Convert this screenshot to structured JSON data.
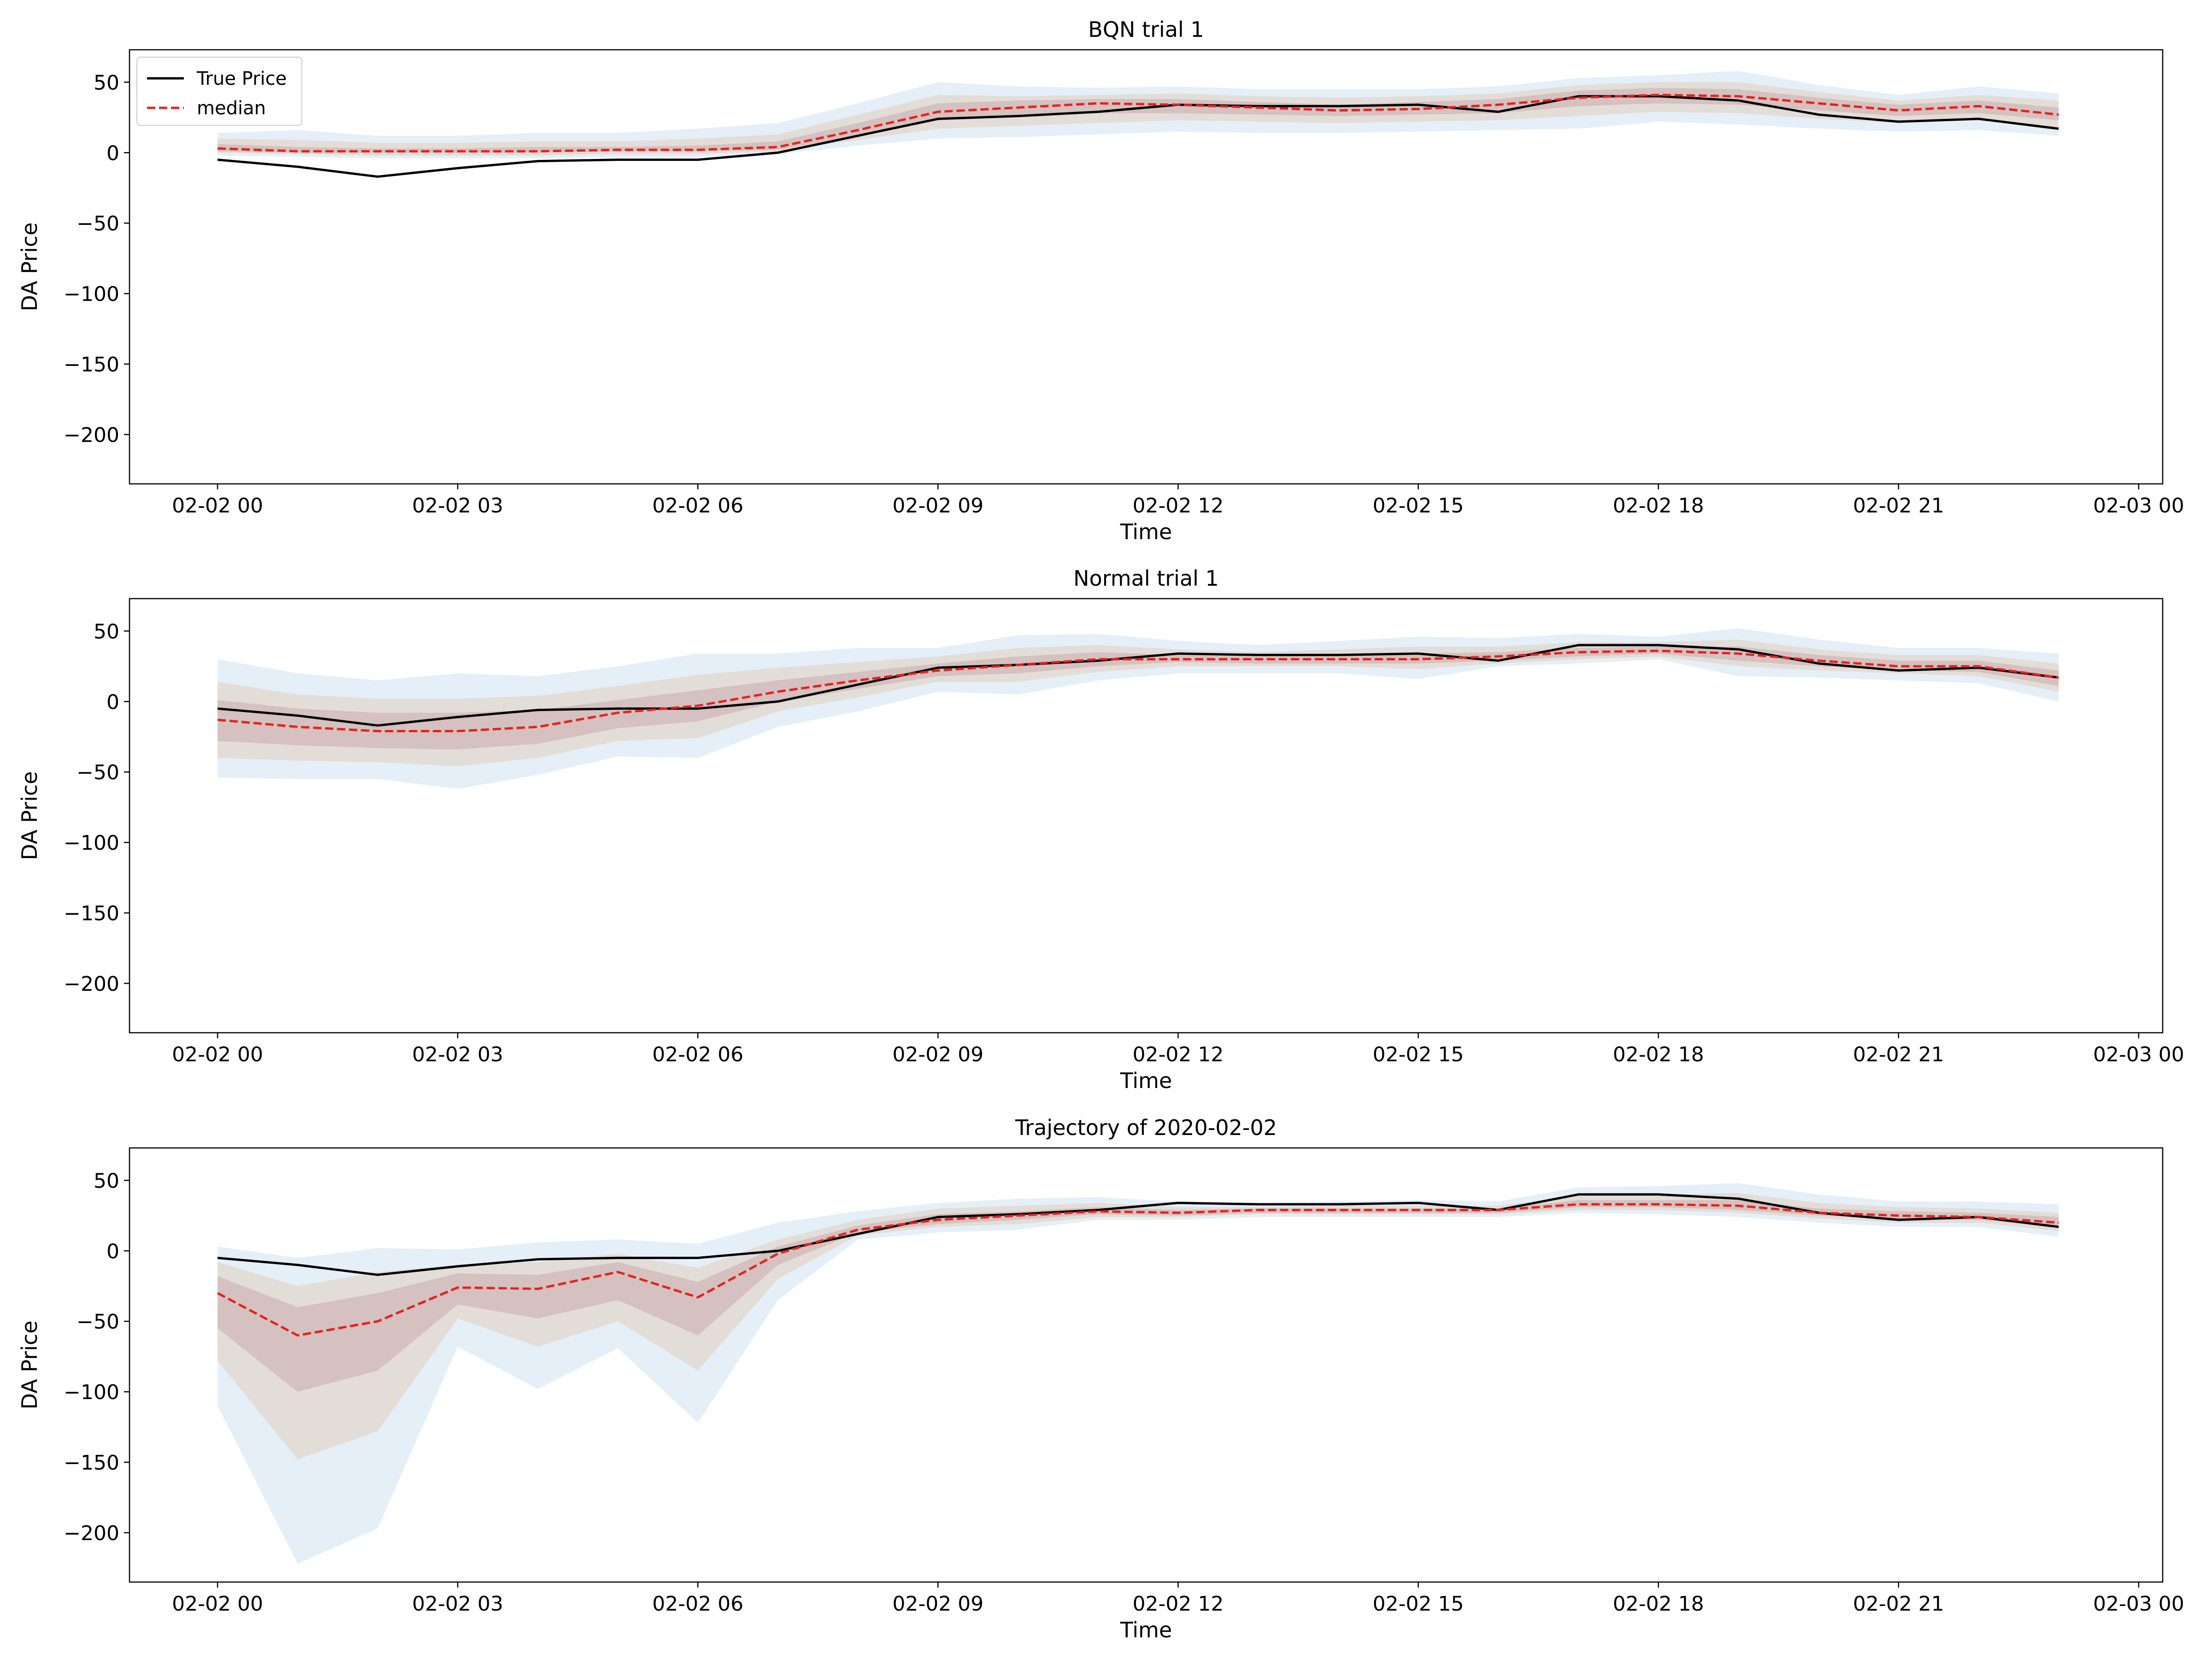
{
  "figure": {
    "legend": {
      "true_label": "True Price",
      "median_label": "median"
    }
  },
  "colors": {
    "true_price": "#000000",
    "median": "#e8201a",
    "band_outer": "#dce9f6",
    "band_mid": "#e2d7cc",
    "band_inner": "#c9a9ad"
  },
  "chart_data": [
    {
      "type": "line",
      "title": "BQN trial 1",
      "xlabel": "Time",
      "ylabel": "DA Price",
      "ylim": [
        -235,
        73
      ],
      "xlim_hours": [
        -1.1,
        24.3
      ],
      "x_ticks": [
        "02-02 00",
        "02-02 03",
        "02-02 06",
        "02-02 09",
        "02-02 12",
        "02-02 15",
        "02-02 18",
        "02-02 21",
        "02-03 00"
      ],
      "y_ticks": [
        50,
        0,
        -50,
        -100,
        -150,
        -200
      ],
      "x": [
        "02-02 00",
        "02-02 01",
        "02-02 02",
        "02-02 03",
        "02-02 04",
        "02-02 05",
        "02-02 06",
        "02-02 07",
        "02-02 08",
        "02-02 09",
        "02-02 10",
        "02-02 11",
        "02-02 12",
        "02-02 13",
        "02-02 14",
        "02-02 15",
        "02-02 16",
        "02-02 17",
        "02-02 18",
        "02-02 19",
        "02-02 20",
        "02-02 21",
        "02-02 22",
        "02-02 23"
      ],
      "legend_placement": "top-left",
      "series": [
        {
          "name": "True Price",
          "values": [
            -5,
            -10,
            -17,
            -11,
            -6,
            -5,
            -5,
            0,
            12,
            24,
            26,
            29,
            34,
            33,
            33,
            34,
            29,
            40,
            40,
            37,
            27,
            22,
            24,
            17
          ]
        },
        {
          "name": "median",
          "values": [
            3,
            1,
            1,
            1,
            1,
            2,
            2,
            4,
            16,
            29,
            32,
            35,
            34,
            32,
            30,
            31,
            34,
            39,
            41,
            40,
            35,
            30,
            33,
            27
          ]
        }
      ],
      "bands": {
        "outer_low": [
          -2,
          -3,
          -4,
          -4,
          -4,
          -3,
          -3,
          -1,
          5,
          10,
          11,
          13,
          15,
          14,
          14,
          15,
          16,
          17,
          22,
          20,
          17,
          15,
          16,
          12
        ],
        "outer_high": [
          14,
          16,
          12,
          12,
          14,
          14,
          17,
          21,
          35,
          50,
          47,
          46,
          47,
          45,
          45,
          45,
          47,
          53,
          55,
          58,
          48,
          41,
          47,
          42
        ],
        "mid_low": [
          0,
          -1,
          -2,
          -2,
          -2,
          -1,
          -1,
          1,
          9,
          17,
          19,
          21,
          23,
          22,
          21,
          22,
          23,
          26,
          29,
          28,
          24,
          21,
          23,
          18
        ],
        "mid_high": [
          10,
          9,
          7,
          7,
          8,
          8,
          10,
          13,
          27,
          41,
          40,
          41,
          42,
          40,
          39,
          40,
          42,
          48,
          50,
          50,
          43,
          37,
          41,
          37
        ],
        "inner_low": [
          1,
          0,
          0,
          0,
          0,
          1,
          1,
          2,
          12,
          23,
          25,
          28,
          28,
          27,
          26,
          27,
          28,
          33,
          35,
          34,
          30,
          26,
          28,
          23
        ],
        "inner_high": [
          6,
          4,
          3,
          3,
          4,
          4,
          5,
          8,
          21,
          35,
          37,
          38,
          38,
          36,
          34,
          36,
          38,
          44,
          46,
          45,
          39,
          34,
          37,
          32
        ]
      }
    },
    {
      "type": "line",
      "title": "Normal trial 1",
      "xlabel": "Time",
      "ylabel": "DA Price",
      "ylim": [
        -235,
        73
      ],
      "xlim_hours": [
        -1.1,
        24.3
      ],
      "x_ticks": [
        "02-02 00",
        "02-02 03",
        "02-02 06",
        "02-02 09",
        "02-02 12",
        "02-02 15",
        "02-02 18",
        "02-02 21",
        "02-03 00"
      ],
      "y_ticks": [
        50,
        0,
        -50,
        -100,
        -150,
        -200
      ],
      "x": [
        "02-02 00",
        "02-02 01",
        "02-02 02",
        "02-02 03",
        "02-02 04",
        "02-02 05",
        "02-02 06",
        "02-02 07",
        "02-02 08",
        "02-02 09",
        "02-02 10",
        "02-02 11",
        "02-02 12",
        "02-02 13",
        "02-02 14",
        "02-02 15",
        "02-02 16",
        "02-02 17",
        "02-02 18",
        "02-02 19",
        "02-02 20",
        "02-02 21",
        "02-02 22",
        "02-02 23"
      ],
      "series": [
        {
          "name": "True Price",
          "values": [
            -5,
            -10,
            -17,
            -11,
            -6,
            -5,
            -5,
            0,
            12,
            24,
            26,
            29,
            34,
            33,
            33,
            34,
            29,
            40,
            40,
            37,
            27,
            22,
            24,
            17
          ]
        },
        {
          "name": "median",
          "values": [
            -13,
            -18,
            -21,
            -21,
            -18,
            -8,
            -3,
            7,
            15,
            22,
            26,
            30,
            30,
            30,
            30,
            30,
            32,
            35,
            36,
            34,
            29,
            25,
            25,
            17
          ]
        }
      ],
      "bands": {
        "outer_low": [
          -54,
          -55,
          -55,
          -62,
          -52,
          -39,
          -40,
          -18,
          -7,
          7,
          5,
          15,
          20,
          20,
          20,
          16,
          25,
          27,
          30,
          18,
          17,
          15,
          13,
          0
        ],
        "outer_high": [
          30,
          20,
          15,
          20,
          18,
          25,
          34,
          34,
          38,
          38,
          47,
          48,
          43,
          40,
          43,
          46,
          45,
          48,
          46,
          52,
          44,
          38,
          38,
          34
        ],
        "mid_low": [
          -40,
          -42,
          -43,
          -46,
          -40,
          -28,
          -26,
          -7,
          3,
          14,
          14,
          21,
          25,
          25,
          25,
          23,
          27,
          30,
          32,
          25,
          22,
          20,
          18,
          7
        ],
        "mid_high": [
          14,
          5,
          2,
          2,
          4,
          11,
          19,
          24,
          28,
          32,
          38,
          40,
          37,
          35,
          37,
          39,
          39,
          42,
          42,
          44,
          37,
          33,
          33,
          27
        ],
        "inner_low": [
          -28,
          -31,
          -33,
          -34,
          -30,
          -19,
          -14,
          0,
          9,
          18,
          20,
          25,
          28,
          27,
          27,
          27,
          29,
          32,
          34,
          29,
          25,
          22,
          21,
          11
        ],
        "inner_high": [
          1,
          -5,
          -8,
          -8,
          -6,
          1,
          8,
          15,
          21,
          27,
          32,
          35,
          33,
          32,
          33,
          34,
          35,
          38,
          39,
          39,
          33,
          29,
          29,
          22
        ]
      }
    },
    {
      "type": "line",
      "title": "Trajectory of 2020-02-02",
      "xlabel": "Time",
      "ylabel": "DA Price",
      "ylim": [
        -235,
        73
      ],
      "xlim_hours": [
        -1.1,
        24.3
      ],
      "x_ticks": [
        "02-02 00",
        "02-02 03",
        "02-02 06",
        "02-02 09",
        "02-02 12",
        "02-02 15",
        "02-02 18",
        "02-02 21",
        "02-03 00"
      ],
      "y_ticks": [
        50,
        0,
        -50,
        -100,
        -150,
        -200
      ],
      "x": [
        "02-02 00",
        "02-02 01",
        "02-02 02",
        "02-02 03",
        "02-02 04",
        "02-02 05",
        "02-02 06",
        "02-02 07",
        "02-02 08",
        "02-02 09",
        "02-02 10",
        "02-02 11",
        "02-02 12",
        "02-02 13",
        "02-02 14",
        "02-02 15",
        "02-02 16",
        "02-02 17",
        "02-02 18",
        "02-02 19",
        "02-02 20",
        "02-02 21",
        "02-02 22",
        "02-02 23"
      ],
      "series": [
        {
          "name": "True Price",
          "values": [
            -5,
            -10,
            -17,
            -11,
            -6,
            -5,
            -5,
            0,
            12,
            24,
            26,
            29,
            34,
            33,
            33,
            34,
            29,
            40,
            40,
            37,
            27,
            22,
            24,
            17
          ]
        },
        {
          "name": "median",
          "values": [
            -30,
            -60,
            -50,
            -26,
            -27,
            -15,
            -33,
            -2,
            15,
            22,
            25,
            28,
            27,
            29,
            29,
            29,
            29,
            33,
            33,
            32,
            27,
            25,
            24,
            20
          ]
        }
      ],
      "bands": {
        "outer_low": [
          -110,
          -222,
          -197,
          -68,
          -98,
          -69,
          -122,
          -35,
          8,
          13,
          15,
          22,
          22,
          24,
          24,
          24,
          24,
          27,
          26,
          24,
          20,
          17,
          17,
          10
        ],
        "outer_high": [
          3,
          -5,
          2,
          1,
          6,
          8,
          5,
          20,
          28,
          34,
          37,
          38,
          35,
          34,
          35,
          36,
          35,
          45,
          46,
          48,
          40,
          35,
          35,
          33
        ],
        "mid_low": [
          -78,
          -148,
          -128,
          -48,
          -68,
          -50,
          -85,
          -20,
          11,
          17,
          19,
          24,
          24,
          26,
          26,
          26,
          26,
          29,
          29,
          27,
          23,
          20,
          20,
          14
        ],
        "mid_high": [
          -8,
          -25,
          -15,
          -10,
          -8,
          -2,
          -12,
          8,
          22,
          30,
          32,
          34,
          31,
          31,
          32,
          32,
          32,
          39,
          40,
          41,
          34,
          31,
          30,
          27
        ],
        "inner_low": [
          -55,
          -100,
          -85,
          -38,
          -48,
          -35,
          -60,
          -10,
          13,
          19,
          22,
          26,
          25,
          27,
          27,
          27,
          27,
          31,
          31,
          29,
          25,
          22,
          22,
          17
        ],
        "inner_high": [
          -18,
          -40,
          -30,
          -16,
          -17,
          -8,
          -22,
          3,
          18,
          26,
          28,
          31,
          29,
          30,
          30,
          30,
          30,
          36,
          36,
          36,
          30,
          28,
          27,
          24
        ]
      }
    }
  ]
}
